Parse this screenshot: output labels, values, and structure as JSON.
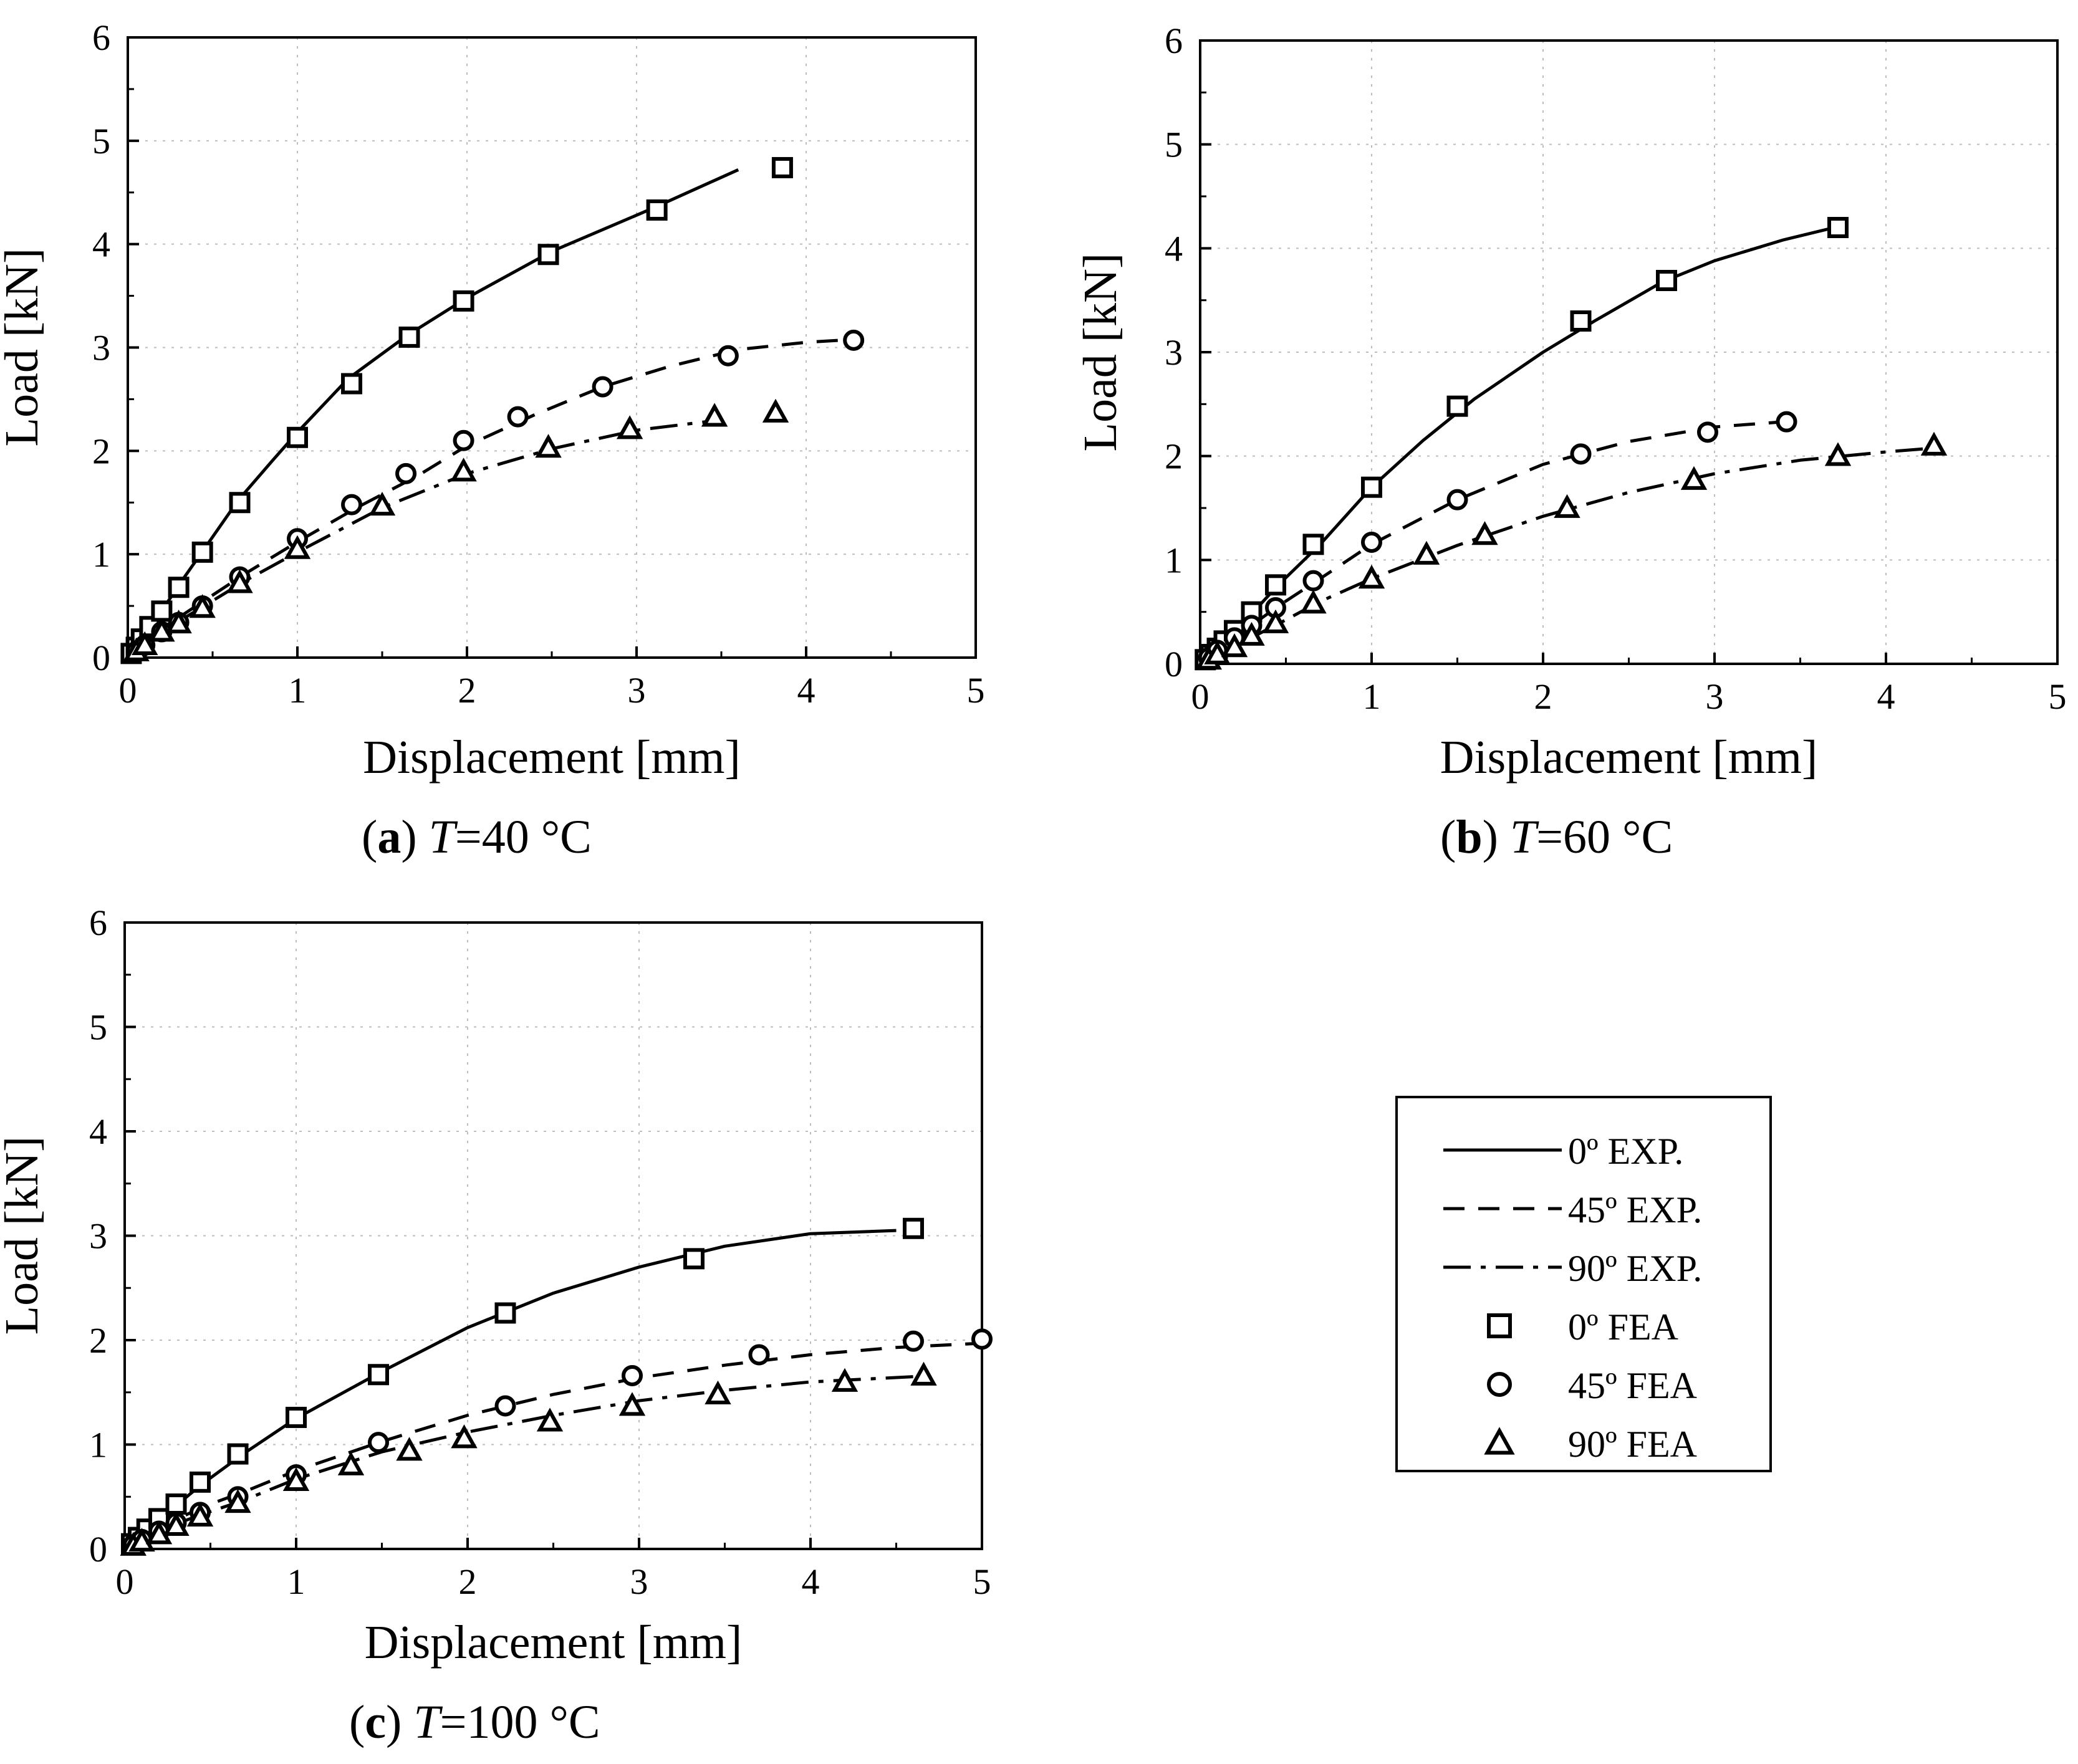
{
  "chart_data": [
    {
      "type": "line",
      "panel": "a",
      "caption": {
        "label": "a",
        "var": "T",
        "value": "=40 °C"
      },
      "xlabel": "Displacement [mm]",
      "ylabel": "Load [kN]",
      "xlim": [
        0,
        5
      ],
      "ylim": [
        0,
        6
      ],
      "xticks": [
        "0",
        "1",
        "2",
        "3",
        "4",
        "5"
      ],
      "yticks": [
        "0",
        "1",
        "2",
        "3",
        "4",
        "5",
        "6"
      ],
      "grid": true,
      "series": [
        {
          "name": "0º EXP.",
          "style": "solid",
          "x": [
            0,
            0.1,
            0.2,
            0.3,
            0.45,
            0.65,
            0.85,
            1.0,
            1.3,
            1.65,
            2.0,
            2.5,
            3.1,
            3.6
          ],
          "y": [
            0,
            0.2,
            0.45,
            0.7,
            1.05,
            1.52,
            1.9,
            2.18,
            2.7,
            3.12,
            3.48,
            3.93,
            4.35,
            4.72
          ]
        },
        {
          "name": "45º EXP.",
          "style": "dashed",
          "x": [
            0,
            0.2,
            0.45,
            0.7,
            1.0,
            1.35,
            1.7,
            2.0,
            2.4,
            2.8,
            3.2,
            3.6,
            4.0,
            4.3
          ],
          "y": [
            0,
            0.28,
            0.55,
            0.82,
            1.12,
            1.45,
            1.75,
            2.05,
            2.35,
            2.62,
            2.82,
            2.98,
            3.05,
            3.08
          ]
        },
        {
          "name": "90º EXP.",
          "style": "dashdot",
          "x": [
            0,
            0.2,
            0.45,
            0.7,
            1.0,
            1.5,
            2.0,
            2.5,
            3.0,
            3.5
          ],
          "y": [
            0,
            0.25,
            0.5,
            0.75,
            1.02,
            1.45,
            1.78,
            2.02,
            2.2,
            2.3
          ]
        },
        {
          "name": "0º FEA",
          "marker": "square",
          "x": [
            0.02,
            0.05,
            0.08,
            0.13,
            0.2,
            0.3,
            0.44,
            0.66,
            1.0,
            1.32,
            1.66,
            1.98,
            2.48,
            3.12,
            3.86
          ],
          "y": [
            0.04,
            0.1,
            0.18,
            0.3,
            0.45,
            0.68,
            1.02,
            1.5,
            2.13,
            2.65,
            3.1,
            3.45,
            3.9,
            4.33,
            4.74
          ]
        },
        {
          "name": "45º FEA",
          "marker": "circle",
          "x": [
            0.05,
            0.1,
            0.2,
            0.3,
            0.44,
            0.66,
            1.0,
            1.32,
            1.64,
            1.98,
            2.3,
            2.8,
            3.54,
            4.28
          ],
          "y": [
            0.06,
            0.12,
            0.25,
            0.34,
            0.5,
            0.78,
            1.15,
            1.48,
            1.78,
            2.1,
            2.33,
            2.62,
            2.92,
            3.07
          ]
        },
        {
          "name": "90º FEA",
          "marker": "triangle",
          "x": [
            0.05,
            0.1,
            0.2,
            0.3,
            0.44,
            0.66,
            1.0,
            1.5,
            1.98,
            2.48,
            2.96,
            3.46,
            3.82
          ],
          "y": [
            0.06,
            0.12,
            0.25,
            0.33,
            0.48,
            0.72,
            1.05,
            1.47,
            1.8,
            2.03,
            2.21,
            2.33,
            2.37
          ]
        }
      ]
    },
    {
      "type": "line",
      "panel": "b",
      "caption": {
        "label": "b",
        "var": "T",
        "value": "=60 °C"
      },
      "xlabel": "Displacement [mm]",
      "ylabel": "Load [kN]",
      "xlim": [
        0,
        5
      ],
      "ylim": [
        0,
        6
      ],
      "xticks": [
        "0",
        "1",
        "2",
        "3",
        "4",
        "5"
      ],
      "yticks": [
        "0",
        "1",
        "2",
        "3",
        "4",
        "5",
        "6"
      ],
      "grid": true,
      "series": [
        {
          "name": "0º EXP.",
          "style": "solid",
          "x": [
            0,
            0.2,
            0.45,
            0.7,
            1.0,
            1.3,
            1.6,
            2.0,
            2.3,
            2.7,
            3.0,
            3.4,
            3.7
          ],
          "y": [
            0,
            0.3,
            0.75,
            1.15,
            1.7,
            2.15,
            2.55,
            3.0,
            3.3,
            3.68,
            3.88,
            4.08,
            4.2
          ]
        },
        {
          "name": "45º EXP.",
          "style": "dashed",
          "x": [
            0,
            0.2,
            0.45,
            0.7,
            1.0,
            1.5,
            2.0,
            2.5,
            3.0,
            3.4
          ],
          "y": [
            0,
            0.25,
            0.55,
            0.82,
            1.15,
            1.58,
            1.92,
            2.14,
            2.28,
            2.33
          ]
        },
        {
          "name": "90º EXP.",
          "style": "dashdot",
          "x": [
            0,
            0.2,
            0.45,
            0.7,
            1.0,
            1.5,
            2.0,
            2.5,
            3.0,
            3.5,
            4.0,
            4.3
          ],
          "y": [
            0,
            0.17,
            0.38,
            0.6,
            0.82,
            1.14,
            1.42,
            1.65,
            1.83,
            1.96,
            2.04,
            2.08
          ]
        },
        {
          "name": "0º FEA",
          "marker": "square",
          "x": [
            0.03,
            0.06,
            0.1,
            0.14,
            0.2,
            0.3,
            0.44,
            0.66,
            1.0,
            1.5,
            2.22,
            2.72,
            3.72
          ],
          "y": [
            0.04,
            0.09,
            0.15,
            0.22,
            0.32,
            0.5,
            0.76,
            1.15,
            1.7,
            2.48,
            3.3,
            3.69,
            4.2
          ]
        },
        {
          "name": "45º FEA",
          "marker": "circle",
          "x": [
            0.05,
            0.1,
            0.2,
            0.3,
            0.44,
            0.66,
            1.0,
            1.5,
            2.22,
            2.96,
            3.42
          ],
          "y": [
            0.06,
            0.13,
            0.25,
            0.37,
            0.54,
            0.8,
            1.17,
            1.58,
            2.02,
            2.23,
            2.33
          ]
        },
        {
          "name": "90º FEA",
          "marker": "triangle",
          "x": [
            0.05,
            0.1,
            0.2,
            0.3,
            0.44,
            0.66,
            1.0,
            1.32,
            1.66,
            2.14,
            2.88,
            3.72,
            4.28
          ],
          "y": [
            0.04,
            0.09,
            0.16,
            0.27,
            0.39,
            0.58,
            0.82,
            1.05,
            1.24,
            1.5,
            1.77,
            2.0,
            2.1
          ]
        }
      ]
    },
    {
      "type": "line",
      "panel": "c",
      "caption": {
        "label": "c",
        "var": "T",
        "value": "=100 °C"
      },
      "xlabel": "Displacement [mm]",
      "ylabel": "Load [kN]",
      "xlim": [
        0,
        5
      ],
      "ylim": [
        0,
        6
      ],
      "xticks": [
        "0",
        "1",
        "2",
        "3",
        "4",
        "5"
      ],
      "yticks": [
        "0",
        "1",
        "2",
        "3",
        "4",
        "5",
        "6"
      ],
      "grid": true,
      "series": [
        {
          "name": "0º EXP.",
          "style": "solid",
          "x": [
            0,
            0.2,
            0.45,
            0.7,
            1.0,
            1.5,
            2.0,
            2.5,
            3.0,
            3.5,
            4.0,
            4.5
          ],
          "y": [
            0,
            0.28,
            0.62,
            0.92,
            1.25,
            1.7,
            2.12,
            2.45,
            2.7,
            2.9,
            3.02,
            3.05
          ]
        },
        {
          "name": "45º EXP.",
          "style": "dashed",
          "x": [
            0,
            0.2,
            0.45,
            0.7,
            1.0,
            1.5,
            2.0,
            2.5,
            3.0,
            3.5,
            4.0,
            4.5,
            5.0
          ],
          "y": [
            0,
            0.2,
            0.4,
            0.55,
            0.75,
            1.03,
            1.28,
            1.48,
            1.64,
            1.76,
            1.86,
            1.93,
            1.97
          ]
        },
        {
          "name": "90º EXP.",
          "style": "dashdot",
          "x": [
            0,
            0.2,
            0.45,
            0.7,
            1.0,
            1.5,
            2.0,
            2.5,
            3.0,
            3.5,
            4.0,
            4.6
          ],
          "y": [
            0,
            0.18,
            0.33,
            0.47,
            0.67,
            0.93,
            1.12,
            1.28,
            1.42,
            1.52,
            1.6,
            1.65
          ]
        },
        {
          "name": "0º FEA",
          "marker": "square",
          "x": [
            0.04,
            0.08,
            0.13,
            0.2,
            0.3,
            0.44,
            0.66,
            1.0,
            1.48,
            2.22,
            3.32,
            4.6
          ],
          "y": [
            0.05,
            0.11,
            0.19,
            0.29,
            0.43,
            0.64,
            0.91,
            1.26,
            1.67,
            2.26,
            2.78,
            3.07
          ]
        },
        {
          "name": "45º FEA",
          "marker": "circle",
          "x": [
            0.05,
            0.1,
            0.2,
            0.3,
            0.44,
            0.66,
            1.0,
            1.48,
            2.22,
            2.96,
            3.7,
            4.6,
            5.0
          ],
          "y": [
            0.04,
            0.09,
            0.17,
            0.25,
            0.35,
            0.5,
            0.71,
            1.02,
            1.37,
            1.66,
            1.86,
            1.99,
            2.01
          ]
        },
        {
          "name": "90º FEA",
          "marker": "triangle",
          "x": [
            0.05,
            0.1,
            0.2,
            0.3,
            0.44,
            0.66,
            1.0,
            1.32,
            1.66,
            1.98,
            2.48,
            2.96,
            3.46,
            4.2,
            4.66
          ],
          "y": [
            0.03,
            0.07,
            0.14,
            0.22,
            0.31,
            0.44,
            0.65,
            0.8,
            0.94,
            1.06,
            1.22,
            1.37,
            1.48,
            1.6,
            1.66
          ]
        }
      ]
    }
  ],
  "legend": {
    "items": [
      {
        "label": "0º EXP.",
        "kind": "line",
        "style": "solid"
      },
      {
        "label": "45º EXP.",
        "kind": "line",
        "style": "dashed"
      },
      {
        "label": "90º EXP.",
        "kind": "line",
        "style": "dashdot"
      },
      {
        "label": "0º FEA",
        "kind": "marker",
        "marker": "square"
      },
      {
        "label": "45º FEA",
        "kind": "marker",
        "marker": "circle"
      },
      {
        "label": "90º FEA",
        "kind": "marker",
        "marker": "triangle"
      }
    ]
  },
  "colors": {
    "ink": "#000000",
    "grid": "#bdbdbd",
    "background": "#ffffff"
  }
}
